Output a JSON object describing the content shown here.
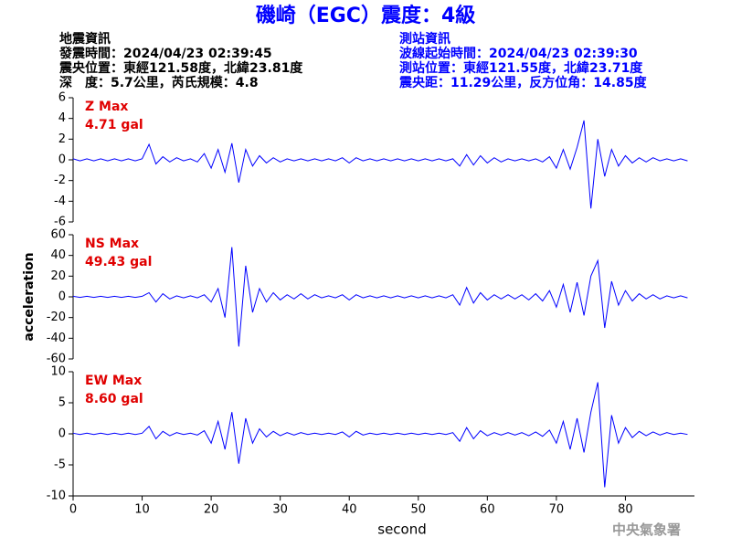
{
  "header": {
    "title": "磯崎（EGC）震度：4級",
    "event_info": [
      "地震資訊",
      "發震時間：2024/04/23 02:39:45",
      "震央位置：東經121.58度，北緯23.81度",
      "深　度：5.7公里，芮氏規模：4.8"
    ],
    "station_info": [
      "測站資訊",
      "波線起始時間：2024/04/23 02:39:30",
      "測站位置：東經121.55度，北緯23.71度",
      "震央距：11.29公里，反方位角：14.85度"
    ]
  },
  "footer": "中央氣象署",
  "chart_data": [
    {
      "type": "line",
      "color": "#0000ff",
      "annotations": [
        "Z Max",
        "4.71 gal"
      ],
      "x": [
        0,
        1,
        2,
        3,
        4,
        5,
        6,
        7,
        8,
        9,
        10,
        11,
        12,
        13,
        14,
        15,
        16,
        17,
        18,
        19,
        20,
        21,
        22,
        23,
        24,
        25,
        26,
        27,
        28,
        29,
        30,
        31,
        32,
        33,
        34,
        35,
        36,
        37,
        38,
        39,
        40,
        41,
        42,
        43,
        44,
        45,
        46,
        47,
        48,
        49,
        50,
        51,
        52,
        53,
        54,
        55,
        56,
        57,
        58,
        59,
        60,
        61,
        62,
        63,
        64,
        65,
        66,
        67,
        68,
        69,
        70,
        71,
        72,
        73,
        74,
        75,
        76,
        77,
        78,
        79,
        80,
        81,
        82,
        83,
        84,
        85,
        86,
        87,
        88,
        89
      ],
      "values": [
        0.1,
        -0.1,
        0.1,
        -0.1,
        0.1,
        -0.1,
        0.1,
        -0.1,
        0.1,
        -0.1,
        0.1,
        1.5,
        -0.4,
        0.3,
        -0.2,
        0.2,
        -0.1,
        0.1,
        -0.2,
        0.6,
        -0.8,
        1.0,
        -1.2,
        1.6,
        -2.2,
        1.0,
        -0.6,
        0.4,
        -0.3,
        0.2,
        -0.2,
        0.1,
        -0.1,
        0.1,
        -0.1,
        0.1,
        -0.1,
        0.1,
        -0.1,
        0.2,
        -0.3,
        0.2,
        -0.1,
        0.1,
        -0.1,
        0.1,
        -0.1,
        0.1,
        -0.1,
        0.1,
        -0.1,
        0.1,
        -0.1,
        0.1,
        -0.1,
        0.1,
        -0.6,
        0.5,
        -0.5,
        0.4,
        -0.3,
        0.2,
        -0.2,
        0.1,
        -0.1,
        0.1,
        -0.1,
        0.1,
        -0.2,
        0.3,
        -0.8,
        1.0,
        -0.9,
        1.2,
        3.8,
        -4.7,
        2.0,
        -1.6,
        1.0,
        -0.6,
        0.4,
        -0.3,
        0.2,
        -0.2,
        0.2,
        -0.1,
        0.1,
        -0.1,
        0.1,
        -0.1
      ],
      "xlim": [
        0,
        90
      ],
      "ylim": [
        -6,
        6
      ],
      "yticks": [
        6,
        4,
        2,
        0,
        -2,
        -4,
        -6
      ]
    },
    {
      "type": "line",
      "color": "#0000ff",
      "annotations": [
        "NS Max",
        "49.43 gal"
      ],
      "ylabel": "acceleration",
      "x": [
        0,
        1,
        2,
        3,
        4,
        5,
        6,
        7,
        8,
        9,
        10,
        11,
        12,
        13,
        14,
        15,
        16,
        17,
        18,
        19,
        20,
        21,
        22,
        23,
        24,
        25,
        26,
        27,
        28,
        29,
        30,
        31,
        32,
        33,
        34,
        35,
        36,
        37,
        38,
        39,
        40,
        41,
        42,
        43,
        44,
        45,
        46,
        47,
        48,
        49,
        50,
        51,
        52,
        53,
        54,
        55,
        56,
        57,
        58,
        59,
        60,
        61,
        62,
        63,
        64,
        65,
        66,
        67,
        68,
        69,
        70,
        71,
        72,
        73,
        74,
        75,
        76,
        77,
        78,
        79,
        80,
        81,
        82,
        83,
        84,
        85,
        86,
        87,
        88,
        89
      ],
      "values": [
        0.5,
        -0.5,
        0.5,
        -0.5,
        0.5,
        -0.5,
        0.5,
        -0.5,
        0.5,
        -0.5,
        0.5,
        4,
        -5,
        3,
        -2,
        1,
        -1,
        1,
        -1,
        2,
        -5,
        8,
        -20,
        48,
        -48,
        30,
        -15,
        8,
        -5,
        4,
        -3,
        2,
        -2,
        3,
        -2,
        2,
        -1,
        1,
        -1,
        2,
        -3,
        2,
        -1,
        1,
        -1,
        1,
        -1,
        1,
        -1,
        1,
        -1,
        1,
        -1,
        1,
        -1,
        2,
        -8,
        9,
        -6,
        4,
        -3,
        2,
        -2,
        2,
        -2,
        2,
        -3,
        3,
        -4,
        6,
        -10,
        12,
        -15,
        14,
        -18,
        20,
        35,
        -30,
        15,
        -8,
        6,
        -4,
        3,
        -2,
        2,
        -2,
        1,
        -1,
        1,
        -1
      ],
      "xlim": [
        0,
        90
      ],
      "ylim": [
        -60,
        60
      ],
      "yticks": [
        60,
        40,
        20,
        0,
        -20,
        -40,
        -60
      ]
    },
    {
      "type": "line",
      "color": "#0000ff",
      "annotations": [
        "EW Max",
        "8.60 gal"
      ],
      "xlabel": "second",
      "x": [
        0,
        1,
        2,
        3,
        4,
        5,
        6,
        7,
        8,
        9,
        10,
        11,
        12,
        13,
        14,
        15,
        16,
        17,
        18,
        19,
        20,
        21,
        22,
        23,
        24,
        25,
        26,
        27,
        28,
        29,
        30,
        31,
        32,
        33,
        34,
        35,
        36,
        37,
        38,
        39,
        40,
        41,
        42,
        43,
        44,
        45,
        46,
        47,
        48,
        49,
        50,
        51,
        52,
        53,
        54,
        55,
        56,
        57,
        58,
        59,
        60,
        61,
        62,
        63,
        64,
        65,
        66,
        67,
        68,
        69,
        70,
        71,
        72,
        73,
        74,
        75,
        76,
        77,
        78,
        79,
        80,
        81,
        82,
        83,
        84,
        85,
        86,
        87,
        88,
        89
      ],
      "values": [
        0.1,
        -0.1,
        0.1,
        -0.1,
        0.1,
        -0.1,
        0.1,
        -0.1,
        0.1,
        -0.1,
        0.1,
        1.2,
        -0.8,
        0.4,
        -0.3,
        0.2,
        -0.1,
        0.1,
        -0.2,
        0.5,
        -1.5,
        2.0,
        -2.5,
        3.5,
        -4.8,
        2.5,
        -1.5,
        0.8,
        -0.5,
        0.4,
        -0.3,
        0.2,
        -0.2,
        0.2,
        -0.1,
        0.1,
        -0.1,
        0.1,
        -0.1,
        0.3,
        -0.5,
        0.4,
        -0.2,
        0.1,
        -0.1,
        0.1,
        -0.1,
        0.1,
        -0.1,
        0.1,
        -0.1,
        0.1,
        -0.1,
        0.1,
        -0.1,
        0.2,
        -1.2,
        1.0,
        -0.8,
        0.5,
        -0.3,
        0.2,
        -0.2,
        0.2,
        -0.2,
        0.2,
        -0.3,
        0.3,
        -0.4,
        0.6,
        -1.5,
        2.0,
        -2.5,
        2.5,
        -3.0,
        3.5,
        8.3,
        -8.6,
        3.0,
        -1.5,
        1.0,
        -0.6,
        0.4,
        -0.3,
        0.3,
        -0.2,
        0.2,
        -0.1,
        0.1,
        -0.1
      ],
      "xlim": [
        0,
        90
      ],
      "ylim": [
        -10,
        10
      ],
      "yticks": [
        10,
        5,
        0,
        -5,
        -10
      ],
      "xticks": [
        0,
        10,
        20,
        30,
        40,
        50,
        60,
        70,
        80
      ]
    }
  ]
}
